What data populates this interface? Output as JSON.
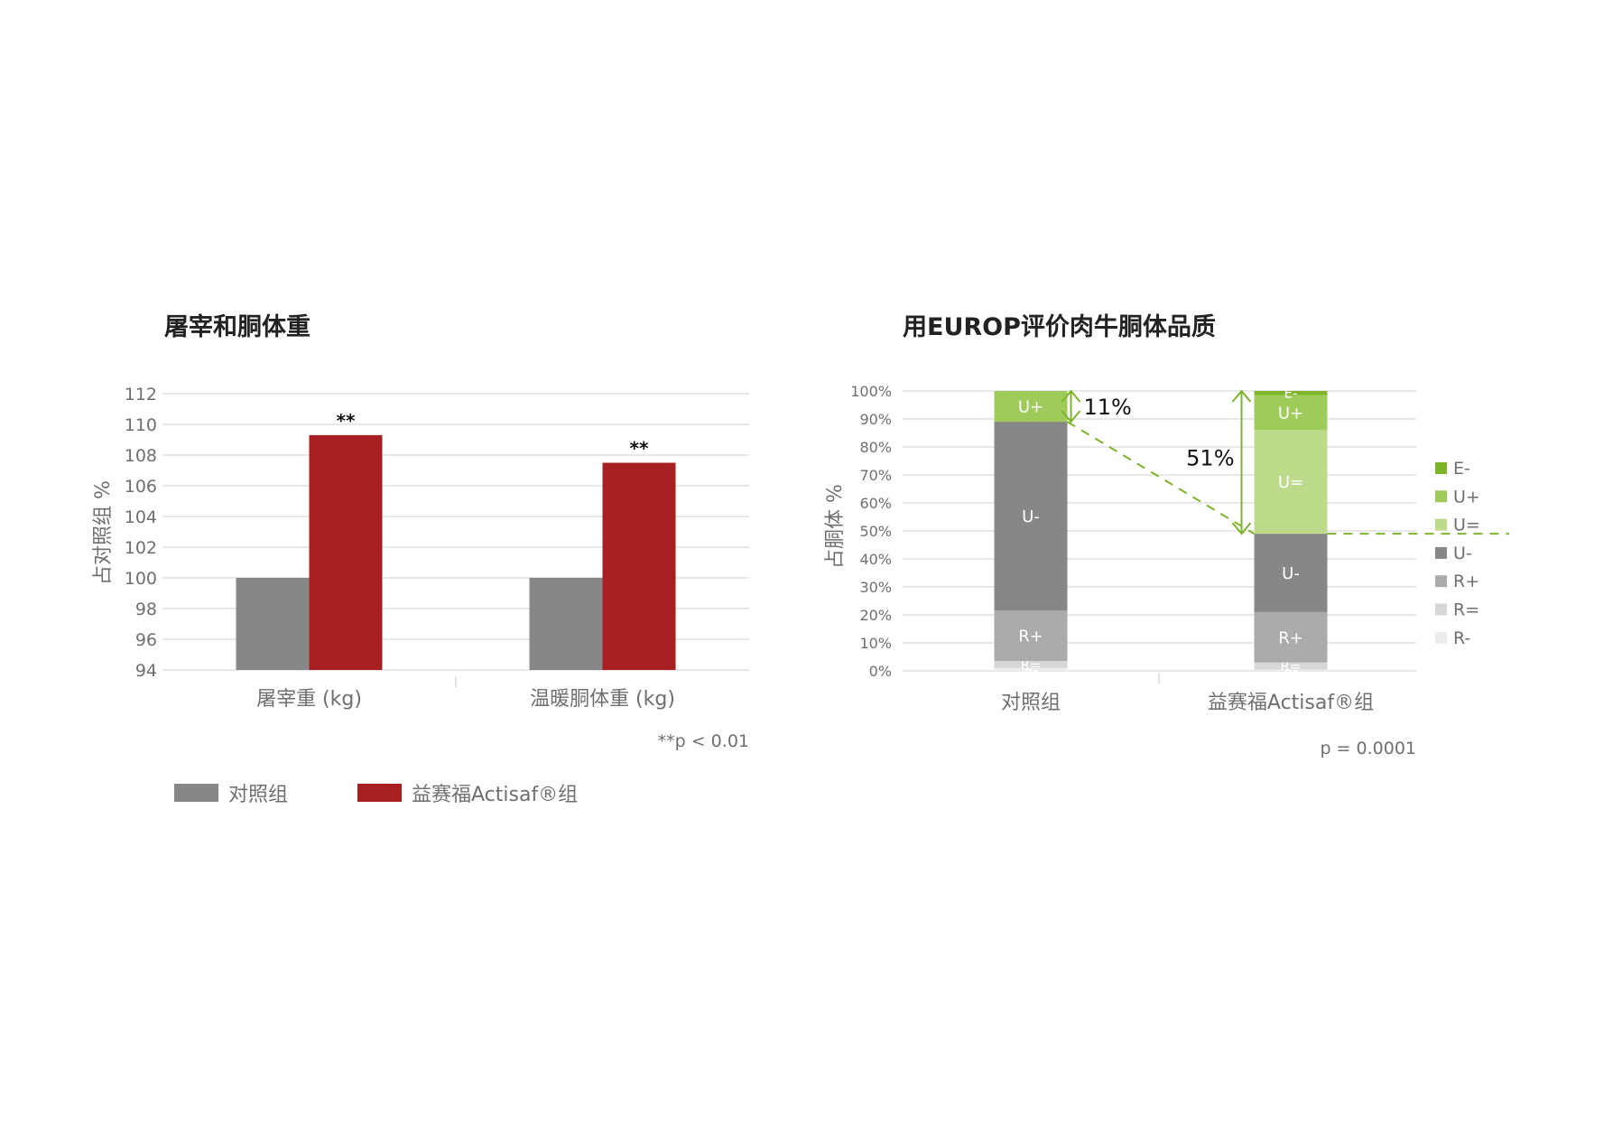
{
  "chart_data": [
    {
      "type": "bar",
      "title": "屠宰和胴体重",
      "ylabel": "占对照组 %",
      "xlabel": "",
      "ylim": [
        94,
        112
      ],
      "yticks": [
        94,
        96,
        98,
        100,
        102,
        104,
        106,
        108,
        110,
        112
      ],
      "categories": [
        "屠宰重 (kg)",
        "温暖胴体重 (kg)"
      ],
      "series": [
        {
          "name": "对照组",
          "values": [
            100,
            100
          ],
          "color": "#878787"
        },
        {
          "name": "益赛福Actisaf®组",
          "values": [
            109.3,
            107.5
          ],
          "color": "#a71f20"
        }
      ],
      "annotations": [
        "**",
        "**"
      ],
      "footnote": "**p < 0.01",
      "grid": true,
      "legend_position": "bottom"
    },
    {
      "type": "bar",
      "stacked": true,
      "title": "用EUROP评价肉牛胴体品质",
      "ylabel": "占胴体 %",
      "xlabel": "",
      "ylim": [
        0,
        100
      ],
      "yticks": [
        "0%",
        "10%",
        "20%",
        "30%",
        "40%",
        "50%",
        "60%",
        "70%",
        "80%",
        "90%",
        "100%"
      ],
      "categories": [
        "对照组",
        "益赛福Actisaf®组"
      ],
      "series": [
        {
          "name": "R-",
          "values": [
            1,
            0.5
          ],
          "color": "#ececec"
        },
        {
          "name": "R=",
          "values": [
            2.5,
            2.5
          ],
          "color": "#d7d7d7"
        },
        {
          "name": "R+",
          "values": [
            18,
            18
          ],
          "color": "#ababab"
        },
        {
          "name": "U-",
          "values": [
            67.5,
            28
          ],
          "color": "#878787"
        },
        {
          "name": "U=",
          "values": [
            0,
            37
          ],
          "color": "#bddb8a"
        },
        {
          "name": "U+",
          "values": [
            11,
            12.5
          ],
          "color": "#9fcb5b"
        },
        {
          "name": "E-",
          "values": [
            0,
            1.5
          ],
          "color": "#7db428"
        }
      ],
      "annotations": [
        "11%",
        "51%"
      ],
      "footnote": "p = 0.0001",
      "grid": true,
      "legend_position": "right",
      "legend_order": [
        "E-",
        "U+",
        "U=",
        "U-",
        "R+",
        "R=",
        "R-"
      ]
    }
  ],
  "colors": {
    "grid": "#d9d9d9",
    "tick_text": "#6f6f6f",
    "title_text": "#222222",
    "arrow_green": "#7db428"
  }
}
